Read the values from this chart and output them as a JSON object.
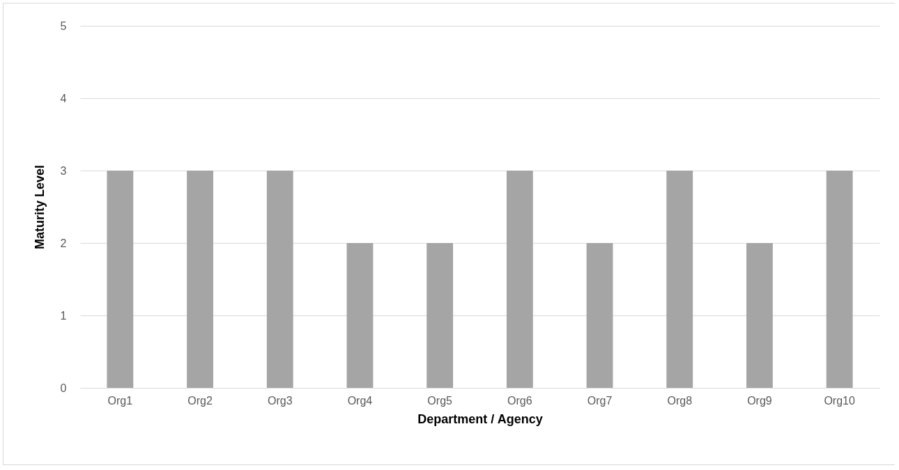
{
  "chart_data": {
    "type": "bar",
    "xlabel": "Department / Agency",
    "ylabel": "Maturity Level",
    "categories": [
      "Org1",
      "Org2",
      "Org3",
      "Org4",
      "Org5",
      "Org6",
      "Org7",
      "Org8",
      "Org9",
      "Org10"
    ],
    "values": [
      3,
      3,
      3,
      2,
      2,
      3,
      2,
      3,
      2,
      3
    ],
    "color": "#a5a5a5",
    "ylim": [
      0,
      5
    ],
    "yticks": [
      0,
      1,
      2,
      3,
      4,
      5
    ],
    "grid": "y"
  }
}
